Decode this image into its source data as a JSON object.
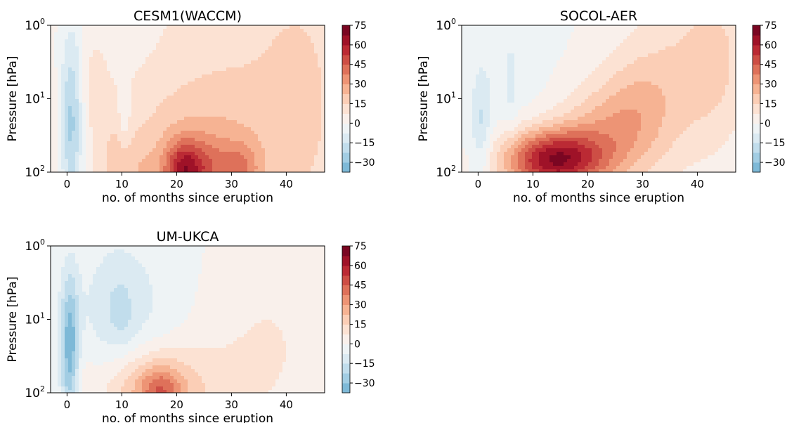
{
  "chart_data": [
    {
      "type": "heatmap",
      "subtype": "filled-contour",
      "title": "CESM1(WACCM)",
      "xlabel": "no. of months since eruption",
      "ylabel": "Pressure [hPa]",
      "xlim": [
        -3,
        47
      ],
      "x_ticks": [
        0,
        10,
        20,
        30,
        40
      ],
      "y_scale": "log",
      "y_inverted": true,
      "ylim": [
        100,
        1
      ],
      "y_ticks": [
        1,
        10,
        100
      ],
      "y_tick_labels": [
        {
          "base": "10",
          "exp": "0"
        },
        {
          "base": "10",
          "exp": "1"
        },
        {
          "base": "10",
          "exp": "2"
        }
      ],
      "colorbar": {
        "cmap": "RdBu_r",
        "levels": [
          -37.5,
          75
        ],
        "step": 7.5,
        "ticks": [
          75,
          60,
          45,
          30,
          15,
          0,
          -15,
          -30
        ]
      },
      "features": [
        {
          "x": 12,
          "p": 3,
          "sx": 30,
          "sp": 2.5,
          "value": 6
        },
        {
          "x": 35,
          "p": 12,
          "sx": 14,
          "sp": 1.3,
          "value": 9
        },
        {
          "x": 43,
          "p": 8,
          "sx": 5,
          "sp": 1.5,
          "value": 7
        },
        {
          "x": 24,
          "p": 90,
          "sx": 9,
          "sp": 0.7,
          "value": 16
        },
        {
          "x": 21.5,
          "p": 92,
          "sx": 2.6,
          "sp": 0.28,
          "value": 42
        },
        {
          "x": 27,
          "p": 85,
          "sx": 2.5,
          "sp": 0.3,
          "value": 12
        },
        {
          "x": 32,
          "p": 90,
          "sx": 2.2,
          "sp": 0.25,
          "value": 18
        },
        {
          "x": 12,
          "p": 92,
          "sx": 3,
          "sp": 0.3,
          "value": 8
        },
        {
          "x": 5,
          "p": 4,
          "sx": 2,
          "sp": 0.5,
          "value": 7
        },
        {
          "x": 8.5,
          "p": 60,
          "sx": 1.5,
          "sp": 0.4,
          "value": 6
        },
        {
          "x": 5,
          "p": 1.2,
          "sx": 8,
          "sp": 0.5,
          "value": -6
        },
        {
          "x": 0.8,
          "p": 22,
          "sx": 1.5,
          "sp": 0.8,
          "value": -30
        },
        {
          "x": 10.5,
          "p": 20,
          "sx": 0.9,
          "sp": 0.3,
          "value": -8
        }
      ]
    },
    {
      "type": "heatmap",
      "subtype": "filled-contour",
      "title": "SOCOL-AER",
      "xlabel": "no. of months since eruption",
      "ylabel": "Pressure [hPa]",
      "xlim": [
        -3,
        47
      ],
      "x_ticks": [
        0,
        10,
        20,
        30,
        40
      ],
      "y_scale": "log",
      "y_inverted": true,
      "ylim": [
        100,
        1
      ],
      "y_ticks": [
        1,
        10,
        100
      ],
      "y_tick_labels": [
        {
          "base": "10",
          "exp": "0"
        },
        {
          "base": "10",
          "exp": "1"
        },
        {
          "base": "10",
          "exp": "2"
        }
      ],
      "colorbar": {
        "cmap": "RdBu_r",
        "levels": [
          -37.5,
          75
        ],
        "step": 7.5,
        "ticks": [
          75,
          60,
          45,
          30,
          15,
          0,
          -15,
          -30
        ]
      },
      "features": [
        {
          "x": 14,
          "p": 68,
          "sx": 6,
          "sp": 0.28,
          "value": 58
        },
        {
          "x": 22,
          "p": 35,
          "sx": 6,
          "sp": 0.5,
          "value": 22
        },
        {
          "x": 29,
          "p": 15,
          "sx": 5,
          "sp": 0.6,
          "value": 16
        },
        {
          "x": 38,
          "p": 5,
          "sx": 7,
          "sp": 0.9,
          "value": 14
        },
        {
          "x": 44,
          "p": 2,
          "sx": 4,
          "sp": 0.8,
          "value": 9
        },
        {
          "x": 8,
          "p": 80,
          "sx": 5,
          "sp": 0.4,
          "value": 10
        },
        {
          "x": 0.5,
          "p": 25,
          "sx": 1.2,
          "sp": 0.5,
          "value": -14
        },
        {
          "x": 5,
          "p": 5,
          "sx": 6,
          "sp": 1.2,
          "value": -5
        },
        {
          "x": 6,
          "p": 7,
          "sx": 0.7,
          "sp": 0.4,
          "value": -6
        }
      ]
    },
    {
      "type": "heatmap",
      "subtype": "filled-contour",
      "title": "UM-UKCA",
      "xlabel": "no. of months since eruption",
      "ylabel": "Pressure [hPa]",
      "xlim": [
        -3,
        47
      ],
      "x_ticks": [
        0,
        10,
        20,
        30,
        40
      ],
      "y_scale": "log",
      "y_inverted": true,
      "ylim": [
        100,
        1
      ],
      "y_ticks": [
        1,
        10,
        100
      ],
      "y_tick_labels": [
        {
          "base": "10",
          "exp": "0"
        },
        {
          "base": "10",
          "exp": "1"
        },
        {
          "base": "10",
          "exp": "2"
        }
      ],
      "colorbar": {
        "cmap": "RdBu_r",
        "levels": [
          -37.5,
          75
        ],
        "step": 7.5,
        "ticks": [
          75,
          60,
          45,
          30,
          15,
          0,
          -15,
          -30
        ]
      },
      "features": [
        {
          "x": 16,
          "p": 90,
          "sx": 6.5,
          "sp": 0.4,
          "value": 28
        },
        {
          "x": 17,
          "p": 95,
          "sx": 2.5,
          "sp": 0.22,
          "value": 20
        },
        {
          "x": 30,
          "p": 40,
          "sx": 10,
          "sp": 1,
          "value": 6
        },
        {
          "x": 40,
          "p": 15,
          "sx": 8,
          "sp": 1.2,
          "value": 4
        },
        {
          "x": 2.5,
          "p": 65,
          "sx": 1.5,
          "sp": 0.5,
          "value": 4
        },
        {
          "x": 0.5,
          "p": 25,
          "sx": 1.2,
          "sp": 0.7,
          "value": -34
        },
        {
          "x": 10,
          "p": 10,
          "sx": 7,
          "sp": 0.7,
          "value": -9
        },
        {
          "x": 9,
          "p": 5,
          "sx": 3,
          "sp": 0.5,
          "value": -6
        },
        {
          "x": 10,
          "p": 11,
          "sx": 1.5,
          "sp": 0.3,
          "value": -4
        },
        {
          "x": 18,
          "p": 5,
          "sx": 8,
          "sp": 1,
          "value": -3
        }
      ]
    }
  ]
}
